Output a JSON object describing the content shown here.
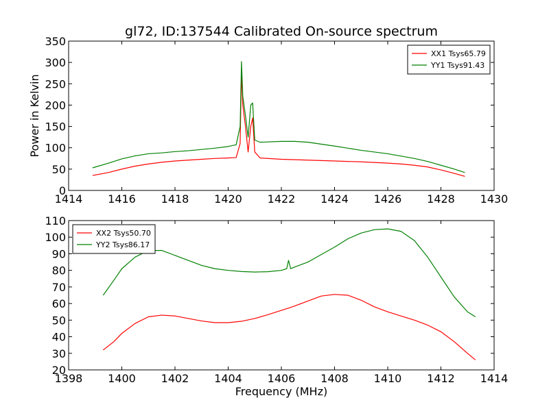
{
  "chart_data": [
    {
      "type": "line",
      "title": "gl72, ID:137544 Calibrated On-source spectrum",
      "xlabel": "",
      "ylabel": "Power in Kelvin",
      "xlim": [
        1414,
        1430
      ],
      "ylim": [
        0,
        350
      ],
      "xticks": [
        "1414",
        "1416",
        "1418",
        "1420",
        "1422",
        "1424",
        "1426",
        "1428",
        "1430"
      ],
      "yticks": [
        "0",
        "50",
        "100",
        "150",
        "200",
        "250",
        "300",
        "350"
      ],
      "grid": false,
      "legend_position": "top-right",
      "series": [
        {
          "name": "XX1 Tsys65.79",
          "color": "#ff0000",
          "x": [
            1414.9,
            1415.5,
            1416.0,
            1416.5,
            1417.0,
            1417.5,
            1418.0,
            1418.5,
            1419.0,
            1419.5,
            1420.0,
            1420.3,
            1420.45,
            1420.5,
            1420.55,
            1420.65,
            1420.75,
            1420.85,
            1420.92,
            1421.0,
            1421.2,
            1422.0,
            1423.0,
            1424.0,
            1425.0,
            1426.0,
            1426.5,
            1427.0,
            1427.5,
            1428.0,
            1428.5,
            1428.9
          ],
          "y": [
            35,
            42,
            50,
            57,
            62,
            66,
            69,
            71,
            73,
            75,
            76,
            77,
            110,
            275,
            200,
            150,
            90,
            150,
            170,
            90,
            76,
            73,
            71,
            69,
            67,
            64,
            62,
            59,
            55,
            48,
            40,
            33
          ]
        },
        {
          "name": "YY1 Tsys91.43",
          "color": "#008000",
          "x": [
            1414.9,
            1415.5,
            1416.0,
            1416.5,
            1417.0,
            1417.5,
            1418.0,
            1418.5,
            1419.0,
            1419.5,
            1420.0,
            1420.3,
            1420.45,
            1420.5,
            1420.55,
            1420.65,
            1420.75,
            1420.85,
            1420.92,
            1421.0,
            1421.2,
            1422.0,
            1422.5,
            1423.0,
            1424.0,
            1425.0,
            1426.0,
            1427.0,
            1427.5,
            1428.0,
            1428.5,
            1428.9
          ],
          "y": [
            53,
            64,
            74,
            81,
            86,
            88,
            91,
            93,
            96,
            99,
            103,
            107,
            150,
            302,
            220,
            175,
            125,
            200,
            205,
            118,
            113,
            115,
            115,
            113,
            104,
            94,
            86,
            75,
            68,
            59,
            50,
            42
          ]
        }
      ]
    },
    {
      "type": "line",
      "title": "",
      "xlabel": "Frequency (MHz)",
      "ylabel": "",
      "xlim": [
        1398,
        1414
      ],
      "ylim": [
        20,
        110
      ],
      "xticks": [
        "1398",
        "1400",
        "1402",
        "1404",
        "1406",
        "1408",
        "1410",
        "1412",
        "1414"
      ],
      "yticks": [
        "20",
        "30",
        "40",
        "50",
        "60",
        "70",
        "80",
        "90",
        "100",
        "110"
      ],
      "grid": false,
      "legend_position": "top-left",
      "series": [
        {
          "name": "XX2 Tsys50.70",
          "color": "#ff0000",
          "x": [
            1399.3,
            1399.7,
            1400.0,
            1400.5,
            1401.0,
            1401.5,
            1402.0,
            1402.5,
            1403.0,
            1403.5,
            1404.0,
            1404.5,
            1405.0,
            1405.5,
            1406.0,
            1406.3,
            1406.5,
            1407.0,
            1407.5,
            1408.0,
            1408.5,
            1409.0,
            1409.5,
            1410.0,
            1410.5,
            1411.0,
            1411.5,
            1412.0,
            1412.5,
            1413.0,
            1413.3
          ],
          "y": [
            32,
            37,
            42,
            48,
            52,
            53,
            52.5,
            51,
            49.5,
            48.5,
            48.5,
            49.3,
            51,
            53.3,
            55.9,
            57.4,
            58.5,
            61.5,
            64.5,
            65.5,
            65,
            62,
            58,
            55,
            52.5,
            50,
            47,
            43,
            37,
            30,
            26
          ]
        },
        {
          "name": "YY2 Tsys86.17",
          "color": "#008000",
          "x": [
            1399.3,
            1399.7,
            1400.0,
            1400.5,
            1401.0,
            1401.5,
            1402.0,
            1402.5,
            1403.0,
            1403.5,
            1404.0,
            1404.5,
            1405.0,
            1405.5,
            1406.0,
            1406.2,
            1406.27,
            1406.35,
            1406.5,
            1407.0,
            1407.5,
            1408.0,
            1408.5,
            1409.0,
            1409.5,
            1410.0,
            1410.5,
            1411.0,
            1411.5,
            1412.0,
            1412.5,
            1413.0,
            1413.3
          ],
          "y": [
            65,
            74,
            81,
            88,
            92,
            92,
            89,
            86,
            83,
            81,
            80,
            79.3,
            79,
            79.2,
            80,
            81,
            86,
            81,
            82,
            85,
            89.5,
            94,
            99,
            102.5,
            104.5,
            105,
            103.5,
            98,
            88,
            76,
            64,
            55,
            52
          ]
        }
      ]
    }
  ]
}
